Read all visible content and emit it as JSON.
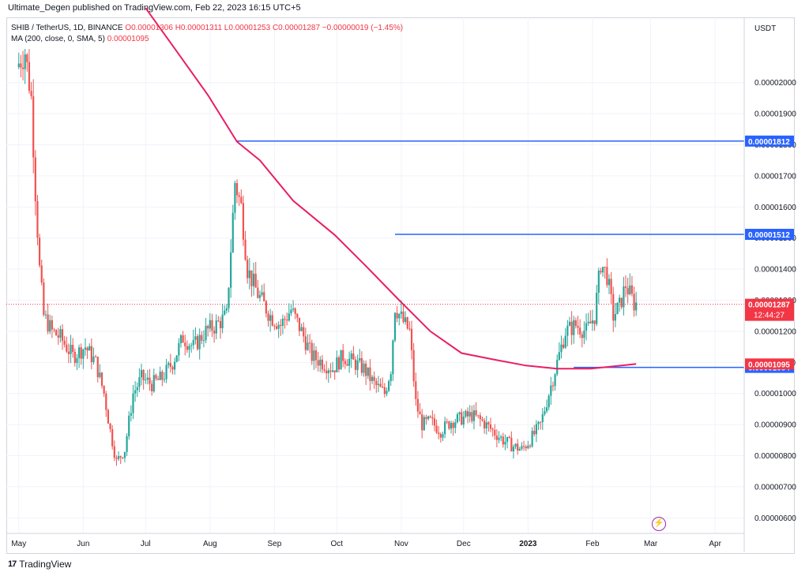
{
  "header": {
    "publisher_line": "Ultimate_Degen published on TradingView.com, Feb 22, 2023 16:15 UTC+5"
  },
  "legend": {
    "symbol": "SHIB / TetherUS, 1D, BINANCE",
    "ohlc": "O0.00001306  H0.00001311  L0.00001253  C0.00001287  −0.00000019 (−1.45%)",
    "ma_label": "MA (200, close, 0, SMA, 5)",
    "ma_value": "0.00001095"
  },
  "footer": {
    "brand": "TradingView",
    "logo": "17"
  },
  "icons": {
    "lightning": "lightning-icon"
  },
  "colors": {
    "up": "#26a69a",
    "down": "#ef5350",
    "ma": "#e91e63",
    "hline": "#2962ff",
    "current": "#f23645",
    "grid": "#f0f3fa"
  },
  "chart_data": {
    "type": "candlestick",
    "symbol": "SHIB / TetherUS",
    "timeframe": "1D",
    "exchange": "BINANCE",
    "currency": "USDT",
    "ylim": [
      5.5e-06,
      2.21e-05
    ],
    "y_ticks": [
      "0.00002000",
      "0.00001900",
      "0.00001800",
      "0.00001700",
      "0.00001600",
      "0.00001500",
      "0.00001400",
      "0.00001300",
      "0.00001200",
      "0.00001100",
      "0.00001000",
      "0.00000900",
      "0.00000800",
      "0.00000700",
      "0.00000600"
    ],
    "x_ticks": [
      "May",
      "Jun",
      "Jul",
      "Aug",
      "Sep",
      "Oct",
      "Nov",
      "Dec",
      "2023",
      "Feb",
      "Mar",
      "Apr"
    ],
    "horizontal_levels": [
      {
        "value": 1.812e-05,
        "label": "0.00001812",
        "start": "2022-08-14"
      },
      {
        "value": 1.512e-05,
        "label": "0.00001512",
        "start": "2022-10-29"
      },
      {
        "value": 1.084e-05,
        "label": "0.00001084",
        "start": "2023-01-23"
      }
    ],
    "current_price": {
      "value": 1.287e-05,
      "label": "0.00001287",
      "countdown": "12:44:27"
    },
    "ma": {
      "label": "MA (200, close, 0, SMA, 5)",
      "value": 1.095e-05,
      "value_label": "0.00001095",
      "points": [
        [
          "2022-07-01",
          2.24e-05
        ],
        [
          "2022-07-15",
          2.11e-05
        ],
        [
          "2022-07-31",
          1.96e-05
        ],
        [
          "2022-08-14",
          1.81e-05
        ],
        [
          "2022-08-25",
          1.75e-05
        ],
        [
          "2022-09-10",
          1.62e-05
        ],
        [
          "2022-09-30",
          1.51e-05
        ],
        [
          "2022-10-15",
          1.41e-05
        ],
        [
          "2022-10-31",
          1.3e-05
        ],
        [
          "2022-11-15",
          1.2e-05
        ],
        [
          "2022-11-30",
          1.13e-05
        ],
        [
          "2022-12-15",
          1.11e-05
        ],
        [
          "2022-12-31",
          1.09e-05
        ],
        [
          "2023-01-15",
          1.08e-05
        ],
        [
          "2023-01-31",
          1.08e-05
        ],
        [
          "2023-02-15",
          1.09e-05
        ],
        [
          "2023-02-22",
          1.095e-05
        ]
      ]
    },
    "price_path": [
      [
        "2022-05-01",
        2.05e-05
      ],
      [
        "2022-05-05",
        2.1e-05
      ],
      [
        "2022-05-08",
        1.95e-05
      ],
      [
        "2022-05-10",
        1.65e-05
      ],
      [
        "2022-05-12",
        1.4e-05
      ],
      [
        "2022-05-14",
        1.25e-05
      ],
      [
        "2022-05-18",
        1.2e-05
      ],
      [
        "2022-05-22",
        1.18e-05
      ],
      [
        "2022-05-28",
        1.12e-05
      ],
      [
        "2022-06-03",
        1.15e-05
      ],
      [
        "2022-06-08",
        1.1e-05
      ],
      [
        "2022-06-12",
        1e-05
      ],
      [
        "2022-06-15",
        8.8e-06
      ],
      [
        "2022-06-18",
        7.8e-06
      ],
      [
        "2022-06-22",
        8.2e-06
      ],
      [
        "2022-06-26",
        1e-05
      ],
      [
        "2022-06-30",
        1.05e-05
      ],
      [
        "2022-07-05",
        1.03e-05
      ],
      [
        "2022-07-10",
        1.05e-05
      ],
      [
        "2022-07-15",
        1.1e-05
      ],
      [
        "2022-07-20",
        1.18e-05
      ],
      [
        "2022-07-25",
        1.15e-05
      ],
      [
        "2022-07-31",
        1.2e-05
      ],
      [
        "2022-08-05",
        1.22e-05
      ],
      [
        "2022-08-10",
        1.25e-05
      ],
      [
        "2022-08-14",
        1.68e-05
      ],
      [
        "2022-08-17",
        1.6e-05
      ],
      [
        "2022-08-20",
        1.4e-05
      ],
      [
        "2022-08-25",
        1.32e-05
      ],
      [
        "2022-08-31",
        1.25e-05
      ],
      [
        "2022-09-05",
        1.22e-05
      ],
      [
        "2022-09-10",
        1.27e-05
      ],
      [
        "2022-09-15",
        1.2e-05
      ],
      [
        "2022-09-20",
        1.12e-05
      ],
      [
        "2022-09-25",
        1.1e-05
      ],
      [
        "2022-09-30",
        1.08e-05
      ],
      [
        "2022-10-05",
        1.12e-05
      ],
      [
        "2022-10-10",
        1.1e-05
      ],
      [
        "2022-10-15",
        1.08e-05
      ],
      [
        "2022-10-20",
        1.03e-05
      ],
      [
        "2022-10-25",
        1e-05
      ],
      [
        "2022-10-28",
        1.08e-05
      ],
      [
        "2022-10-30",
        1.28e-05
      ],
      [
        "2022-11-03",
        1.23e-05
      ],
      [
        "2022-11-06",
        1.2e-05
      ],
      [
        "2022-11-09",
        9.7e-06
      ],
      [
        "2022-11-12",
        9e-06
      ],
      [
        "2022-11-16",
        9.1e-06
      ],
      [
        "2022-11-21",
        8.8e-06
      ],
      [
        "2022-11-26",
        9.1e-06
      ],
      [
        "2022-12-01",
        9.2e-06
      ],
      [
        "2022-12-06",
        9.3e-06
      ],
      [
        "2022-12-11",
        9.1e-06
      ],
      [
        "2022-12-16",
        8.8e-06
      ],
      [
        "2022-12-21",
        8.5e-06
      ],
      [
        "2022-12-26",
        8.3e-06
      ],
      [
        "2022-12-30",
        8.2e-06
      ],
      [
        "2023-01-03",
        8.5e-06
      ],
      [
        "2023-01-08",
        9e-06
      ],
      [
        "2023-01-12",
        1e-05
      ],
      [
        "2023-01-16",
        1.1e-05
      ],
      [
        "2023-01-20",
        1.2e-05
      ],
      [
        "2023-01-25",
        1.22e-05
      ],
      [
        "2023-01-30",
        1.2e-05
      ],
      [
        "2023-02-03",
        1.25e-05
      ],
      [
        "2023-02-06",
        1.42e-05
      ],
      [
        "2023-02-09",
        1.38e-05
      ],
      [
        "2023-02-12",
        1.25e-05
      ],
      [
        "2023-02-15",
        1.28e-05
      ],
      [
        "2023-02-18",
        1.35e-05
      ],
      [
        "2023-02-22",
        1.29e-05
      ]
    ]
  }
}
